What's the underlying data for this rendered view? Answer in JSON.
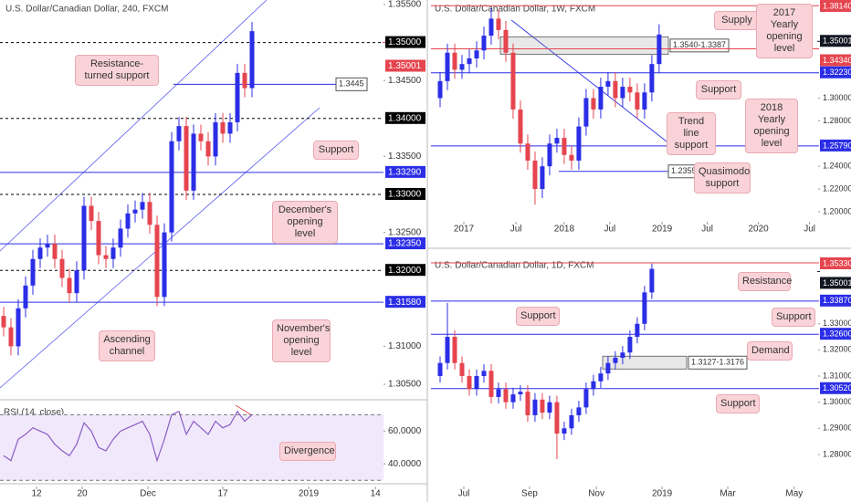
{
  "chart_data": [
    {
      "type": "candlestick",
      "title": "U.S. Dollar/Canadian Dollar, 240, FXCM",
      "up_color": "#2b2ee6",
      "down_color": "#e5454f",
      "open": [
        1.314,
        1.3125,
        1.31,
        1.315,
        1.318,
        1.3215,
        1.323,
        1.3235,
        1.3215,
        1.319,
        1.317,
        1.32,
        1.3285,
        1.3265,
        1.322,
        1.3215,
        1.323,
        1.3255,
        1.3275,
        1.328,
        1.329,
        1.326,
        1.3165,
        1.325,
        1.337,
        1.339,
        1.3305,
        1.338,
        1.337,
        1.335,
        1.3395,
        1.338,
        1.3395,
        1.346,
        1.344
      ],
      "high": [
        1.3152,
        1.3137,
        1.3162,
        1.3192,
        1.3227,
        1.3242,
        1.3247,
        1.3247,
        1.3227,
        1.3202,
        1.3212,
        1.3297,
        1.3297,
        1.3277,
        1.3232,
        1.3242,
        1.3267,
        1.3287,
        1.3292,
        1.3302,
        1.3302,
        1.3272,
        1.3262,
        1.3382,
        1.3402,
        1.3402,
        1.3392,
        1.3392,
        1.3382,
        1.3407,
        1.3407,
        1.3407,
        1.3472,
        1.3472,
        1.3527
      ],
      "low": [
        1.3113,
        1.3088,
        1.3088,
        1.3138,
        1.3168,
        1.3203,
        1.3218,
        1.3203,
        1.3178,
        1.3158,
        1.3158,
        1.3188,
        1.3253,
        1.3208,
        1.3203,
        1.3203,
        1.3218,
        1.3243,
        1.3263,
        1.3268,
        1.3248,
        1.3153,
        1.3153,
        1.3238,
        1.3358,
        1.3293,
        1.3293,
        1.3358,
        1.3338,
        1.3338,
        1.3368,
        1.3368,
        1.3383,
        1.3428,
        1.3428
      ],
      "close": [
        1.3125,
        1.31,
        1.315,
        1.318,
        1.3215,
        1.323,
        1.3235,
        1.3215,
        1.319,
        1.317,
        1.32,
        1.3285,
        1.3265,
        1.322,
        1.3215,
        1.323,
        1.3255,
        1.3275,
        1.328,
        1.329,
        1.326,
        1.3165,
        1.325,
        1.337,
        1.339,
        1.3305,
        1.338,
        1.337,
        1.335,
        1.3395,
        1.338,
        1.3395,
        1.346,
        1.344,
        1.3515
      ],
      "xlim": [
        -0.5,
        52
      ],
      "xticks": [
        {
          "value": 4.5,
          "label": "12"
        },
        {
          "value": 10.75,
          "label": "20"
        },
        {
          "value": 19.75,
          "label": "Dec"
        },
        {
          "value": 30,
          "label": "17"
        },
        {
          "value": 41.75,
          "label": "2019"
        },
        {
          "value": 50.9,
          "label": "14"
        }
      ],
      "ylim": [
        1.30296,
        1.3556
      ],
      "yticks": [
        {
          "value": 1.355,
          "label": "1.35500"
        },
        {
          "value": 1.345,
          "label": "1.34500"
        },
        {
          "value": 1.335,
          "label": "1.33500"
        },
        {
          "value": 1.325,
          "label": "1.32500"
        },
        {
          "value": 1.31,
          "label": "1.31000"
        },
        {
          "value": 1.305,
          "label": "1.30500"
        }
      ],
      "levels": [
        {
          "value": 1.35,
          "label": "1.35000",
          "color": "#000000",
          "style": "dashed"
        },
        {
          "value": 1.35001,
          "label": "1.35001",
          "color": "#e5454f",
          "style": "box"
        },
        {
          "value": 1.34,
          "label": "1.34000",
          "color": "#000000",
          "style": "dashed"
        },
        {
          "value": 1.3329,
          "label": "1.33290",
          "color": "#2b2ee6",
          "style": "solid"
        },
        {
          "value": 1.33,
          "label": "1.33000",
          "color": "#000000",
          "style": "dashed"
        },
        {
          "value": 1.3235,
          "label": "1.32350",
          "color": "#2b2ee6",
          "style": "solid"
        },
        {
          "value": 1.32,
          "label": "1.32000",
          "color": "#000000",
          "style": "dashed"
        },
        {
          "value": 1.3158,
          "label": "1.31580",
          "color": "#2b2ee6",
          "style": "solid"
        }
      ],
      "lines": [
        {
          "value": 1.3445,
          "label": "1.3445",
          "color": "#2b2ee6"
        }
      ],
      "annotations": [
        "Resistance-turned support",
        "Support",
        "December's opening level",
        "Ascending channel",
        "November's opening level",
        "Divergence"
      ]
    },
    {
      "type": "line",
      "title": "RSI (14, close)",
      "color": "#8b5cc4",
      "values": [
        45,
        42,
        55,
        58,
        62,
        60,
        58,
        52,
        48,
        45,
        52,
        65,
        60,
        50,
        48,
        55,
        60,
        62,
        64,
        66,
        58,
        42,
        55,
        70,
        72,
        58,
        66,
        62,
        58,
        66,
        62,
        64,
        72,
        66,
        70
      ],
      "xlim": [
        -0.5,
        52
      ],
      "ylim": [
        29,
        78
      ],
      "yticks": [
        {
          "value": 60,
          "label": "60.0000"
        },
        {
          "value": 40,
          "label": "40.0000"
        }
      ],
      "bands": [
        30,
        70
      ]
    },
    {
      "type": "candlestick",
      "title": "U.S. Dollar/Canadian Dollar, 1W, FXCM",
      "up_color": "#2b2ee6",
      "down_color": "#e5454f",
      "open": [
        1.3,
        1.315,
        1.34,
        1.325,
        1.33,
        1.335,
        1.342,
        1.355,
        1.37,
        1.36,
        1.34,
        1.29,
        1.26,
        1.245,
        1.22,
        1.24,
        1.26,
        1.265,
        1.25,
        1.245,
        1.275,
        1.3,
        1.29,
        1.31,
        1.315,
        1.3,
        1.31,
        1.305,
        1.29,
        1.305,
        1.33
      ],
      "high": [
        1.323,
        1.348,
        1.348,
        1.338,
        1.343,
        1.35,
        1.363,
        1.3793,
        1.378,
        1.368,
        1.348,
        1.298,
        1.268,
        1.253,
        1.248,
        1.268,
        1.273,
        1.273,
        1.258,
        1.283,
        1.308,
        1.308,
        1.318,
        1.323,
        1.323,
        1.318,
        1.318,
        1.313,
        1.313,
        1.338,
        1.365
      ],
      "low": [
        1.292,
        1.307,
        1.317,
        1.317,
        1.322,
        1.327,
        1.334,
        1.347,
        1.352,
        1.332,
        1.282,
        1.252,
        1.237,
        1.2062,
        1.212,
        1.232,
        1.252,
        1.242,
        1.237,
        1.237,
        1.267,
        1.282,
        1.282,
        1.302,
        1.292,
        1.292,
        1.297,
        1.282,
        1.282,
        1.297,
        1.322
      ],
      "close": [
        1.315,
        1.34,
        1.325,
        1.33,
        1.335,
        1.342,
        1.355,
        1.37,
        1.36,
        1.34,
        1.29,
        1.26,
        1.245,
        1.22,
        1.24,
        1.26,
        1.265,
        1.25,
        1.245,
        1.275,
        1.3,
        1.29,
        1.31,
        1.315,
        1.3,
        1.31,
        1.305,
        1.29,
        1.305,
        1.33,
        1.356
      ],
      "xlim": [
        -1.25,
        51.9
      ],
      "xticks": [
        {
          "value": 3.25,
          "label": "2017"
        },
        {
          "value": 10.4,
          "label": "Jul"
        },
        {
          "value": 17,
          "label": "2018"
        },
        {
          "value": 23.25,
          "label": "Jul"
        },
        {
          "value": 30.4,
          "label": "2019"
        },
        {
          "value": 36.6,
          "label": "Jul"
        },
        {
          "value": 43.6,
          "label": "2020"
        },
        {
          "value": 50.6,
          "label": "Jul"
        }
      ],
      "ylim": [
        1.1895,
        1.3864
      ],
      "yticks": [
        {
          "value": 1.3,
          "label": "1.30000"
        },
        {
          "value": 1.28,
          "label": "1.28000"
        },
        {
          "value": 1.24,
          "label": "1.24000"
        },
        {
          "value": 1.22,
          "label": "1.22000"
        },
        {
          "value": 1.2,
          "label": "1.20000"
        }
      ],
      "levels": [
        {
          "value": 1.3814,
          "label": "1.38140",
          "color": "#e5454f",
          "style": "solid"
        },
        {
          "value": 1.35001,
          "label": "1.35001",
          "color": "#131722",
          "style": "box"
        },
        {
          "value": 1.3434,
          "label": "1.34340",
          "color": "#e5454f",
          "style": "solid"
        },
        {
          "value": 1.3223,
          "label": "1.32230",
          "color": "#2b2ee6",
          "style": "solid"
        },
        {
          "value": 1.2579,
          "label": "1.25790",
          "color": "#2b2ee6",
          "style": "solid"
        }
      ],
      "zones": [
        {
          "from": 1.3387,
          "to": 1.354,
          "label": "1.3540-1.3387"
        }
      ],
      "lines": [
        {
          "value": 1.2355,
          "label": "1.2355",
          "color": "#2b2ee6"
        }
      ],
      "annotations": [
        "Supply",
        "2017 Yearly opening level",
        "Support",
        "Trend line support",
        "2018 Yearly opening level",
        "Quasimodo support"
      ]
    },
    {
      "type": "candlestick",
      "title": "U.S. Dollar/Canadian Dollar, 1D, FXCM",
      "up_color": "#2b2ee6",
      "down_color": "#e5454f",
      "open": [
        1.31,
        1.315,
        1.325,
        1.315,
        1.31,
        1.305,
        1.31,
        1.312,
        1.302,
        1.305,
        1.3,
        1.303,
        1.304,
        1.295,
        1.301,
        1.296,
        1.3,
        1.288,
        1.29,
        1.295,
        1.298,
        1.305,
        1.308,
        1.311,
        1.315,
        1.317,
        1.319,
        1.325,
        1.33,
        1.342
      ],
      "high": [
        1.3175,
        1.338,
        1.3275,
        1.3175,
        1.3125,
        1.3125,
        1.3145,
        1.3145,
        1.3075,
        1.3075,
        1.3055,
        1.3065,
        1.3065,
        1.3035,
        1.3035,
        1.3025,
        1.3025,
        1.2925,
        1.2975,
        1.3005,
        1.3075,
        1.3105,
        1.3135,
        1.3175,
        1.3195,
        1.3215,
        1.3275,
        1.3325,
        1.3445,
        1.353
      ],
      "low": [
        1.3075,
        1.3125,
        1.3125,
        1.3075,
        1.3025,
        1.3025,
        1.3075,
        1.2995,
        1.2995,
        1.2975,
        1.2975,
        1.3005,
        1.2925,
        1.2925,
        1.2935,
        1.2935,
        1.2782,
        1.2855,
        1.2875,
        1.2925,
        1.2955,
        1.3025,
        1.3055,
        1.3085,
        1.3125,
        1.3145,
        1.3165,
        1.3225,
        1.3275,
        1.3395
      ],
      "close": [
        1.315,
        1.325,
        1.315,
        1.31,
        1.305,
        1.31,
        1.312,
        1.302,
        1.305,
        1.3,
        1.303,
        1.304,
        1.295,
        1.301,
        1.296,
        1.3,
        1.288,
        1.29,
        1.295,
        1.298,
        1.305,
        1.308,
        1.311,
        1.315,
        1.317,
        1.319,
        1.325,
        1.33,
        1.342,
        1.351
      ],
      "xlim": [
        -1.25,
        51.9
      ],
      "xticks": [
        {
          "value": 3.25,
          "label": "Jul"
        },
        {
          "value": 12.25,
          "label": "Sep"
        },
        {
          "value": 21.4,
          "label": "Nov"
        },
        {
          "value": 30.4,
          "label": "2019"
        },
        {
          "value": 39.4,
          "label": "Mar"
        },
        {
          "value": 48.5,
          "label": "May"
        }
      ],
      "ylim": [
        1.2681,
        1.3554
      ],
      "yticks": [
        {
          "value": 1.33,
          "label": "1.33000"
        },
        {
          "value": 1.32,
          "label": "1.32000"
        },
        {
          "value": 1.31,
          "label": "1.31000"
        },
        {
          "value": 1.3,
          "label": "1.30000"
        },
        {
          "value": 1.29,
          "label": "1.29000"
        },
        {
          "value": 1.28,
          "label": "1.28000"
        }
      ],
      "levels": [
        {
          "value": 1.3533,
          "label": "1.35330",
          "color": "#e5454f",
          "style": "solid"
        },
        {
          "value": 1.35001,
          "label": "1.35001",
          "color": "#131722",
          "style": "box"
        },
        {
          "value": 1.3387,
          "label": "1.33870",
          "color": "#2b2ee6",
          "style": "solid"
        },
        {
          "value": 1.326,
          "label": "1.32600",
          "color": "#2b2ee6",
          "style": "solid"
        },
        {
          "value": 1.3052,
          "label": "1.30520",
          "color": "#2b2ee6",
          "style": "solid"
        }
      ],
      "zones": [
        {
          "from": 1.3127,
          "to": 1.3176,
          "label": "1.3127-1.3176"
        }
      ],
      "annotations": [
        "Resistance",
        "Support",
        "Support",
        "Demand",
        "Support"
      ]
    }
  ]
}
